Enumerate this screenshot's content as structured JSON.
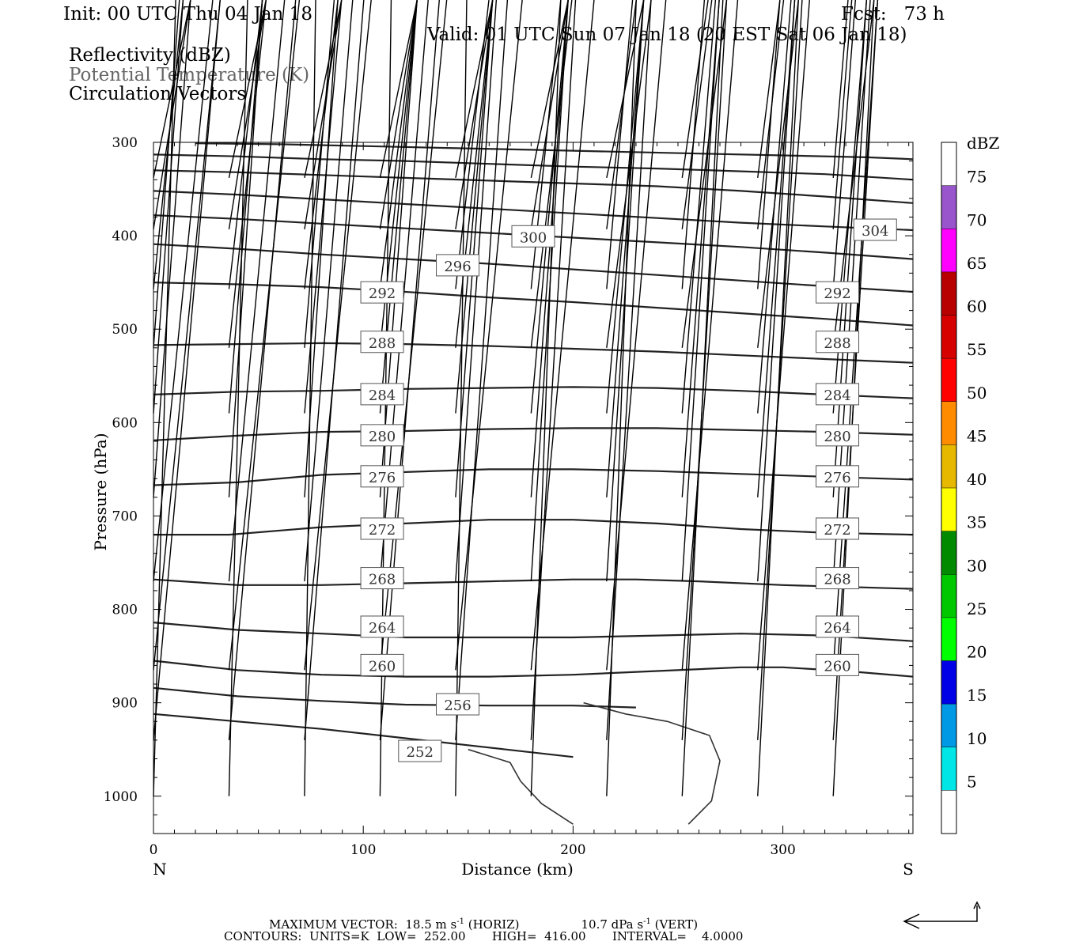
{
  "header": {
    "init": "Init: 00 UTC Thu 04 Jan 18",
    "fcst": "Fcst:   73 h",
    "valid": "Valid: 01 UTC Sun 07 Jan 18 (20 EST Sat 06 Jan 18)",
    "fields": [
      "Reflectivity (dBZ)",
      "Potential Temperature (K)",
      "Circulation Vectors"
    ]
  },
  "footer": {
    "line1_a": "MAXIMUM VECTOR:  18.5 m s",
    "line1_sup1": "-1",
    "line1_b": " (HORIZ)",
    "line1_c": "10.7 dPa s",
    "line1_sup2": "-1",
    "line1_d": " (VERT)",
    "line2": "CONTOURS:  UNITS=K  LOW=  252.00       HIGH=  416.00       INTERVAL=    4.0000"
  },
  "colorbar": {
    "title": "dBZ",
    "levels": [
      "5",
      "10",
      "15",
      "20",
      "25",
      "30",
      "35",
      "40",
      "45",
      "50",
      "55",
      "60",
      "65",
      "70",
      "75"
    ],
    "colors": [
      "#00e6e6",
      "#0099e6",
      "#0000e6",
      "#00ff00",
      "#00c800",
      "#008a00",
      "#ffff00",
      "#e6b800",
      "#ff8c00",
      "#ff0000",
      "#d60000",
      "#b80000",
      "#ff00ff",
      "#9955cc",
      "#ffffff"
    ]
  },
  "chart_data": {
    "type": "cross-section contour",
    "xlabel": "Distance (km)",
    "ylabel": "Pressure (hPa)",
    "xlim": [
      0,
      362
    ],
    "ylim": [
      1040,
      300
    ],
    "x_ticks": [
      "0",
      "100",
      "200",
      "300"
    ],
    "y_ticks": [
      "300",
      "400",
      "500",
      "600",
      "700",
      "800",
      "900",
      "1000"
    ],
    "x_end_labels": {
      "left": "N",
      "right": "S"
    },
    "theta_contours": [
      {
        "value": 252,
        "label": "252",
        "label_at": [
          127,
          952
        ],
        "points": [
          [
            0,
            912
          ],
          [
            40,
            920
          ],
          [
            80,
            928
          ],
          [
            120,
            938
          ],
          [
            160,
            948
          ],
          [
            200,
            958
          ]
        ]
      },
      {
        "value": 256,
        "label": "256",
        "label_at": [
          145,
          902
        ],
        "points": [
          [
            0,
            884
          ],
          [
            40,
            893
          ],
          [
            80,
            898
          ],
          [
            120,
            902
          ],
          [
            160,
            903
          ],
          [
            200,
            903
          ],
          [
            230,
            905
          ]
        ]
      },
      {
        "value": 260,
        "label_at": [
          [
            109,
            860
          ],
          [
            326,
            860
          ]
        ],
        "label": "260",
        "points": [
          [
            0,
            855
          ],
          [
            40,
            865
          ],
          [
            80,
            870
          ],
          [
            120,
            872
          ],
          [
            160,
            872
          ],
          [
            200,
            870
          ],
          [
            240,
            866
          ],
          [
            280,
            862
          ],
          [
            300,
            862
          ],
          [
            330,
            866
          ],
          [
            362,
            872
          ]
        ]
      },
      {
        "value": 264,
        "label_at": [
          [
            109,
            819
          ],
          [
            326,
            819
          ]
        ],
        "label": "264",
        "points": [
          [
            0,
            814
          ],
          [
            40,
            822
          ],
          [
            80,
            826
          ],
          [
            120,
            830
          ],
          [
            160,
            830
          ],
          [
            200,
            830
          ],
          [
            240,
            828
          ],
          [
            280,
            826
          ],
          [
            320,
            828
          ],
          [
            362,
            834
          ]
        ]
      },
      {
        "value": 268,
        "label_at": [
          [
            109,
            767
          ],
          [
            326,
            767
          ]
        ],
        "label": "268",
        "points": [
          [
            0,
            768
          ],
          [
            40,
            774
          ],
          [
            80,
            774
          ],
          [
            120,
            772
          ],
          [
            160,
            770
          ],
          [
            200,
            768
          ],
          [
            230,
            768
          ],
          [
            260,
            770
          ],
          [
            300,
            774
          ],
          [
            362,
            778
          ]
        ]
      },
      {
        "value": 272,
        "label_at": [
          [
            109,
            714
          ],
          [
            326,
            714
          ]
        ],
        "label": "272",
        "points": [
          [
            0,
            720
          ],
          [
            36,
            720
          ],
          [
            80,
            712
          ],
          [
            120,
            708
          ],
          [
            160,
            704
          ],
          [
            200,
            704
          ],
          [
            240,
            708
          ],
          [
            280,
            714
          ],
          [
            320,
            718
          ],
          [
            362,
            720
          ]
        ]
      },
      {
        "value": 276,
        "label_at": [
          [
            109,
            658
          ],
          [
            326,
            658
          ]
        ],
        "label": "276",
        "points": [
          [
            0,
            667
          ],
          [
            40,
            664
          ],
          [
            80,
            656
          ],
          [
            120,
            653
          ],
          [
            160,
            650
          ],
          [
            200,
            650
          ],
          [
            240,
            652
          ],
          [
            280,
            655
          ],
          [
            320,
            658
          ],
          [
            362,
            661
          ]
        ]
      },
      {
        "value": 280,
        "label_at": [
          [
            109,
            614
          ],
          [
            326,
            614
          ]
        ],
        "label": "280",
        "points": [
          [
            0,
            619
          ],
          [
            40,
            614
          ],
          [
            80,
            610
          ],
          [
            120,
            609
          ],
          [
            160,
            607
          ],
          [
            200,
            606
          ],
          [
            240,
            606
          ],
          [
            280,
            608
          ],
          [
            320,
            610
          ],
          [
            362,
            613
          ]
        ]
      },
      {
        "value": 284,
        "label_at": [
          [
            109,
            570
          ],
          [
            326,
            570
          ]
        ],
        "label": "284",
        "points": [
          [
            0,
            570
          ],
          [
            40,
            567
          ],
          [
            80,
            566
          ],
          [
            120,
            564
          ],
          [
            160,
            563
          ],
          [
            200,
            562
          ],
          [
            240,
            563
          ],
          [
            280,
            566
          ],
          [
            320,
            570
          ],
          [
            362,
            574
          ]
        ]
      },
      {
        "value": 288,
        "label_at": [
          [
            109,
            514
          ],
          [
            326,
            514
          ]
        ],
        "label": "288",
        "points": [
          [
            0,
            517
          ],
          [
            40,
            516
          ],
          [
            80,
            515
          ],
          [
            120,
            516
          ],
          [
            160,
            518
          ],
          [
            200,
            521
          ],
          [
            240,
            524
          ],
          [
            280,
            528
          ],
          [
            320,
            532
          ],
          [
            362,
            536
          ]
        ]
      },
      {
        "value": 292,
        "label_at": [
          [
            109,
            461
          ],
          [
            326,
            461
          ]
        ],
        "label": "292",
        "points": [
          [
            0,
            450
          ],
          [
            40,
            452
          ],
          [
            80,
            455
          ],
          [
            120,
            460
          ],
          [
            160,
            466
          ],
          [
            200,
            471
          ],
          [
            240,
            477
          ],
          [
            280,
            483
          ],
          [
            320,
            489
          ],
          [
            362,
            496
          ]
        ]
      },
      {
        "value": 296,
        "label_at": [
          145,
          432
        ],
        "label": "296",
        "points": [
          [
            0,
            409
          ],
          [
            40,
            414
          ],
          [
            80,
            420
          ],
          [
            120,
            425
          ],
          [
            160,
            430
          ],
          [
            200,
            436
          ],
          [
            240,
            442
          ],
          [
            280,
            448
          ],
          [
            320,
            454
          ],
          [
            362,
            460
          ]
        ]
      },
      {
        "value": 300,
        "label_at": [
          181,
          401
        ],
        "label": "300",
        "points": [
          [
            0,
            378
          ],
          [
            40,
            382
          ],
          [
            80,
            387
          ],
          [
            120,
            392
          ],
          [
            160,
            397
          ],
          [
            200,
            402
          ],
          [
            240,
            407
          ],
          [
            280,
            412
          ],
          [
            320,
            418
          ],
          [
            362,
            425
          ]
        ]
      },
      {
        "value": 304,
        "label_at": [
          344,
          394
        ],
        "label": "304",
        "points": [
          [
            0,
            352
          ],
          [
            40,
            356
          ],
          [
            80,
            361
          ],
          [
            120,
            366
          ],
          [
            160,
            371
          ],
          [
            200,
            376
          ],
          [
            240,
            381
          ],
          [
            280,
            386
          ],
          [
            320,
            390
          ],
          [
            362,
            394
          ]
        ]
      },
      {
        "value": 308,
        "points": [
          [
            0,
            330
          ],
          [
            40,
            332
          ],
          [
            80,
            335
          ],
          [
            120,
            338
          ],
          [
            160,
            341
          ],
          [
            200,
            344
          ],
          [
            240,
            347
          ],
          [
            280,
            352
          ],
          [
            320,
            358
          ],
          [
            362,
            365
          ]
        ]
      },
      {
        "value": 312,
        "points": [
          [
            0,
            313
          ],
          [
            40,
            315
          ],
          [
            80,
            318
          ],
          [
            120,
            320
          ],
          [
            160,
            323
          ],
          [
            200,
            326
          ],
          [
            240,
            328
          ],
          [
            280,
            331
          ],
          [
            320,
            334
          ],
          [
            362,
            340
          ]
        ]
      },
      {
        "value": 316,
        "points": [
          [
            20,
            301
          ],
          [
            60,
            302
          ],
          [
            100,
            304
          ],
          [
            140,
            306
          ],
          [
            180,
            308
          ],
          [
            220,
            310
          ],
          [
            260,
            312
          ],
          [
            300,
            314
          ],
          [
            340,
            316
          ],
          [
            362,
            318
          ]
        ]
      }
    ],
    "dbz_contour": {
      "value": 5,
      "points": [
        [
          150,
          950
        ],
        [
          170,
          964
        ],
        [
          175,
          984
        ],
        [
          185,
          1008
        ],
        [
          200,
          1030
        ]
      ]
    },
    "dbz_contour_2": {
      "value": 5,
      "points": [
        [
          205,
          900
        ],
        [
          225,
          912
        ],
        [
          245,
          920
        ],
        [
          265,
          935
        ],
        [
          270,
          962
        ],
        [
          266,
          1005
        ],
        [
          255,
          1030
        ]
      ]
    },
    "vectors": {
      "x_km": [
        0,
        36,
        72,
        108,
        144,
        180,
        216,
        252,
        288,
        324
      ],
      "rows": [
        {
          "p": 338,
          "u": [
            1,
            1,
            1,
            1,
            1,
            1,
            1,
            0.7,
            0.6,
            0.4
          ],
          "w": [
            0.05,
            0.05,
            0.1,
            0.15,
            0.15,
            0.15,
            0.15,
            0.1,
            0.1,
            0.05
          ]
        },
        {
          "p": 393,
          "u": [
            1,
            1,
            1,
            1,
            1,
            1,
            0.8,
            0.8,
            0.7,
            0.5
          ],
          "w": [
            0.05,
            0.08,
            0.1,
            0.12,
            0.15,
            0.15,
            0.1,
            0.05,
            0.03,
            0.02
          ]
        },
        {
          "p": 457,
          "u": [
            0.8,
            0.9,
            0.9,
            1,
            0.9,
            0.8,
            0.7,
            0.6,
            0.6,
            0.6
          ],
          "w": [
            0,
            0,
            0.05,
            0.05,
            0.05,
            0.05,
            0.02,
            0,
            0,
            0
          ]
        },
        {
          "p": 520,
          "u": [
            0.7,
            1,
            0.8,
            1,
            1,
            1.1,
            1.2,
            1.2,
            1.1,
            1.1
          ],
          "w": [
            -0.2,
            0,
            0,
            0,
            -0.1,
            0,
            0,
            0,
            0,
            0
          ]
        },
        {
          "p": 590,
          "u": [
            0.8,
            0.9,
            1,
            1,
            1,
            1,
            1,
            0.9,
            0.9,
            0.9
          ],
          "w": [
            -0.15,
            -0.1,
            -0.05,
            -0.05,
            -0.05,
            0.02,
            0.02,
            0.03,
            0.03,
            0.03
          ]
        },
        {
          "p": 680,
          "u": [
            1,
            0.9,
            0.9,
            1,
            1,
            1,
            1,
            1,
            1,
            0.9
          ],
          "w": [
            0,
            0,
            0,
            -0.1,
            -0.1,
            -0.05,
            0,
            0.05,
            0.07,
            0.05
          ]
        },
        {
          "p": 770,
          "u": [
            1.6,
            1.5,
            1.3,
            1.3,
            1.1,
            1,
            1,
            1,
            1,
            1
          ],
          "w": [
            0.25,
            0.1,
            0.02,
            0.02,
            0,
            0,
            0,
            0,
            0.05,
            0.1
          ]
        },
        {
          "p": 865,
          "u": [
            1.8,
            1.9,
            1.8,
            1.8,
            1.8,
            1.7,
            1.6,
            1.5,
            1.4,
            1.2
          ],
          "w": [
            0.35,
            0.2,
            0.1,
            0.1,
            0.05,
            0.02,
            0,
            0,
            0,
            0
          ]
        },
        {
          "p": 940,
          "u": [
            1.8,
            1.8,
            1.6,
            1.6,
            1.4,
            1.2,
            1.2,
            1.2,
            1.2,
            1.2
          ],
          "w": [
            0.2,
            0.15,
            0.1,
            0.1,
            0.1,
            0,
            0.1,
            0.05,
            0,
            0
          ]
        },
        {
          "p": 1000,
          "u": [
            0.6,
            0.5,
            0.3,
            0.3,
            0.3,
            0.8,
            0.8,
            1.1,
            1.1,
            1.1
          ],
          "w": [
            -0.05,
            0.05,
            0,
            0,
            0,
            0,
            0,
            0,
            0,
            0
          ]
        }
      ]
    },
    "legend_arrow": {
      "horizontal": "18.5 m s-1",
      "vertical": "10.7 dPa s-1"
    }
  }
}
